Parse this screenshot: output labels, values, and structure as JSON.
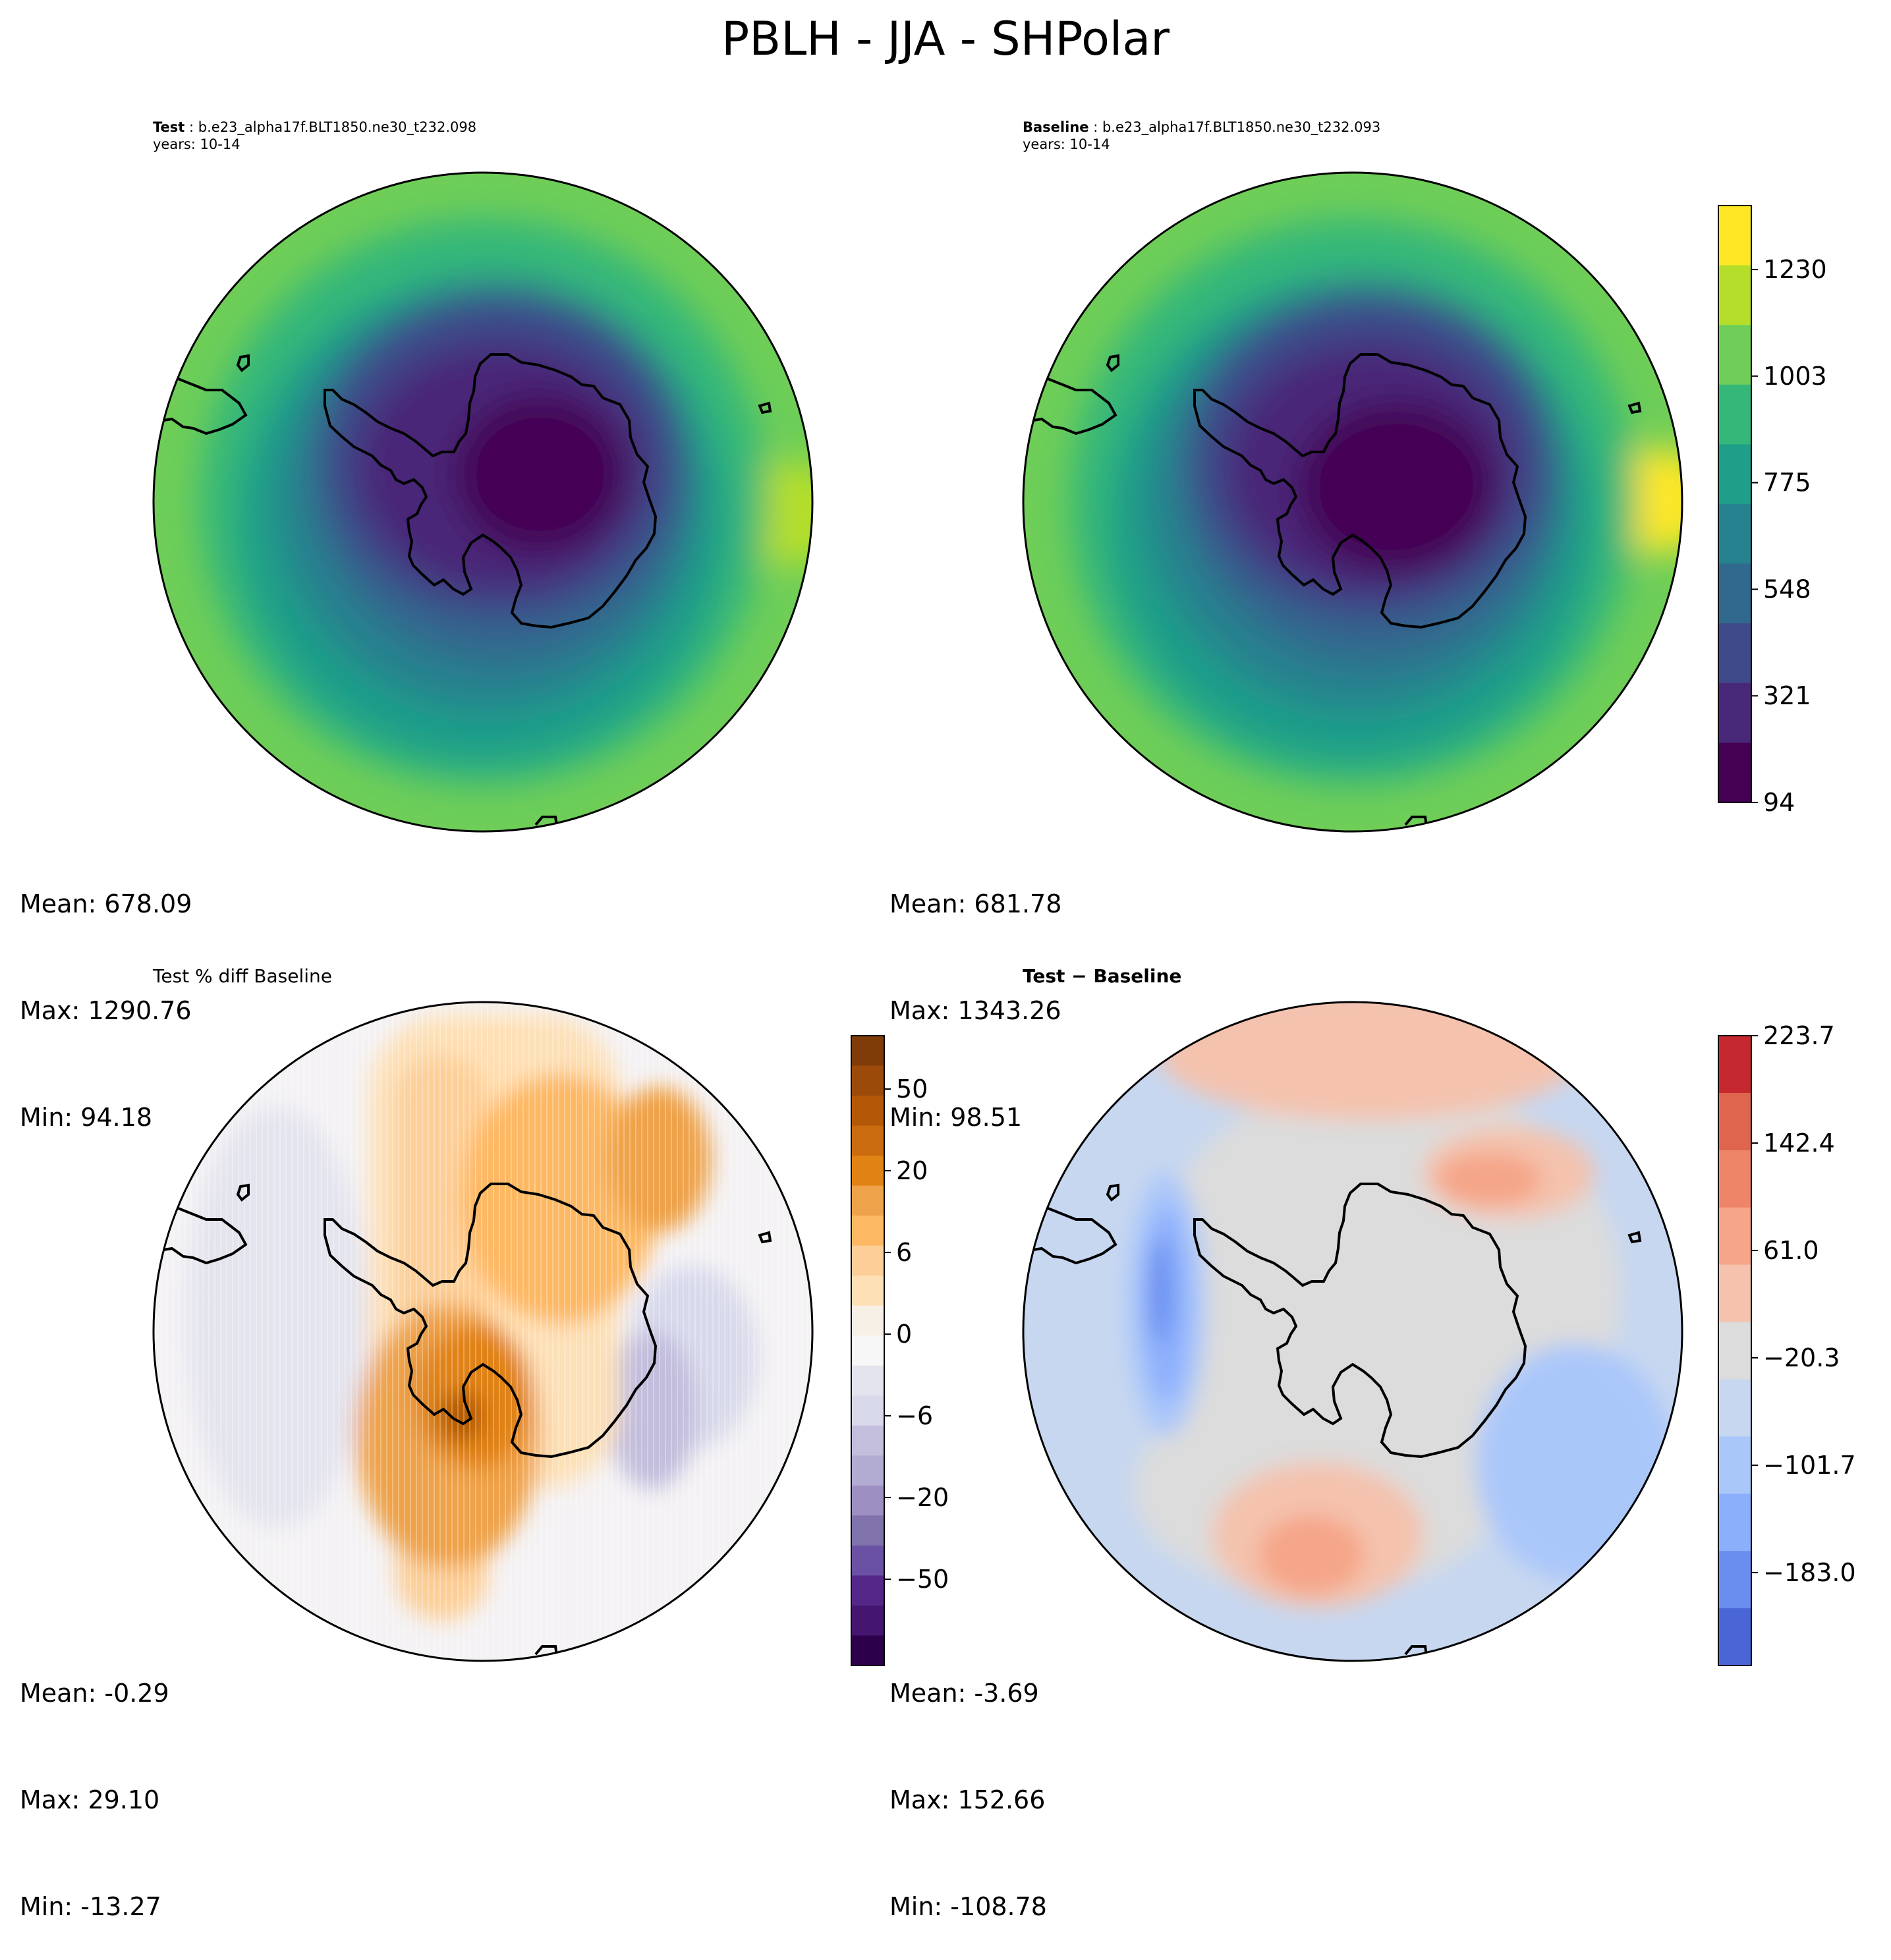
{
  "title": "PBLH - JJA - SHPolar",
  "panels": {
    "test": {
      "label": "Test",
      "case": "b.e23_alpha17f.BLT1850.ne30_t232.098",
      "years": "years: 10-14",
      "stats": [
        "Mean: 678.09",
        "Max: 1290.76",
        "Min: 94.18"
      ]
    },
    "baseline": {
      "label": "Baseline",
      "case": "b.e23_alpha17f.BLT1850.ne30_t232.093",
      "years": "years: 10-14",
      "stats": [
        "Mean: 681.78",
        "Max: 1343.26",
        "Min: 98.51"
      ]
    },
    "pctdiff": {
      "title": "Test % diff Baseline",
      "stats": [
        "Mean: -0.29",
        "Max: 29.10",
        "Min: -13.27"
      ]
    },
    "diff": {
      "title": "Test − Baseline",
      "stats": [
        "Mean: -3.69",
        "Max: 152.66",
        "Min: -108.78"
      ]
    }
  },
  "colorbars": {
    "shared": {
      "colormap": "viridis",
      "ticks": [
        "94",
        "321",
        "548",
        "775",
        "1003",
        "1230"
      ],
      "colors": [
        "#440154",
        "#482878",
        "#3e4a89",
        "#31688e",
        "#26828e",
        "#1f9e89",
        "#35b779",
        "#6ece58",
        "#b5de2b",
        "#fde725"
      ]
    },
    "pctdiff": {
      "colormap": "PuOr_r",
      "ticks": [
        "50",
        "20",
        "6",
        "0",
        "−6",
        "−20",
        "−50"
      ],
      "colors": [
        "#7f3b08",
        "#9c4a09",
        "#b35806",
        "#c96b0e",
        "#e08214",
        "#eea24a",
        "#fdb863",
        "#fdcf98",
        "#fee0b6",
        "#f7f0e6",
        "#f7f7f7",
        "#e4e4ee",
        "#d8daeb",
        "#c2bedc",
        "#b2abd2",
        "#9d8fc2",
        "#8073ac",
        "#6a51a3",
        "#542788",
        "#44166f",
        "#2d004b"
      ]
    },
    "diff": {
      "colormap": "coolwarm",
      "ticks": [
        "223.7",
        "142.4",
        "61.0",
        "−20.3",
        "−101.7",
        "−183.0"
      ],
      "colors": [
        "#c5282f",
        "#e0654f",
        "#ee8468",
        "#f5a588",
        "#f4c2ad",
        "#dcdcdc",
        "#c7d7f0",
        "#aac7fa",
        "#8caffc",
        "#6a8ef0",
        "#4a66d6"
      ]
    }
  }
}
